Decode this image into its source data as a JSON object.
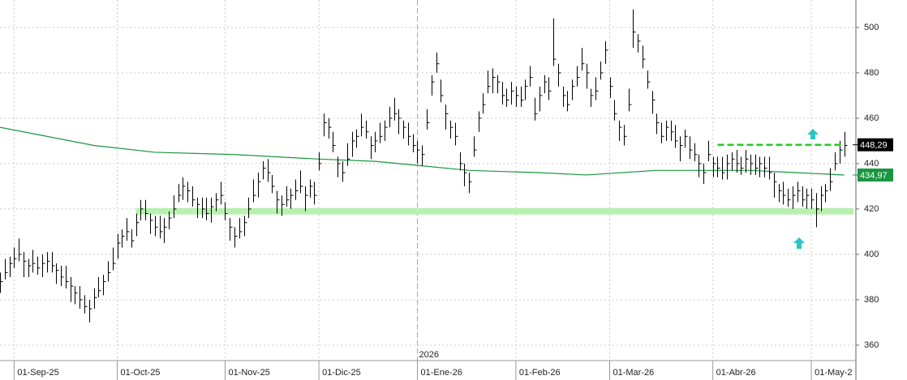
{
  "chart_data": {
    "type": "ohlc",
    "bars": {
      "color": "#000000",
      "close": [
        388,
        392,
        396,
        398,
        400,
        397,
        395,
        396,
        394,
        396,
        397,
        395,
        393,
        390,
        388,
        386,
        383,
        380,
        377,
        376,
        381,
        384,
        388,
        392,
        396,
        405,
        408,
        410,
        406,
        414,
        420,
        418,
        415,
        412,
        410,
        412,
        416,
        420,
        426,
        430,
        428,
        424,
        422,
        420,
        418,
        421,
        424,
        426,
        418,
        412,
        408,
        410,
        414,
        420,
        426,
        432,
        438,
        436,
        430,
        424,
        422,
        424,
        426,
        428,
        430,
        426,
        430,
        426,
        440,
        458,
        456,
        448,
        440,
        436,
        442,
        450,
        452,
        456,
        454,
        448,
        450,
        452,
        456,
        460,
        462,
        460,
        456,
        452,
        448,
        446,
        444,
        458,
        476,
        484,
        470,
        462,
        456,
        452,
        440,
        436,
        432,
        446,
        460,
        466,
        474,
        478,
        476,
        470,
        468,
        472,
        470,
        468,
        474,
        478,
        462,
        470,
        476,
        472,
        486,
        480,
        470,
        466,
        474,
        478,
        484,
        480,
        470,
        472,
        480,
        490,
        474,
        462,
        456,
        452,
        466,
        498,
        494,
        486,
        476,
        468,
        458,
        452,
        456,
        454,
        450,
        448,
        452,
        446,
        444,
        440,
        436,
        444,
        440,
        438,
        436,
        440,
        442,
        440,
        438,
        442,
        440,
        438,
        440,
        438,
        436,
        432,
        428,
        426,
        424,
        426,
        428,
        424,
        426,
        424,
        420,
        426,
        428,
        432,
        440,
        446,
        448
      ],
      "high": [
        392,
        398,
        399,
        403,
        407,
        401,
        398,
        402,
        399,
        400,
        401,
        401,
        396,
        395,
        395,
        390,
        386,
        386,
        382,
        380,
        385,
        390,
        391,
        397,
        403,
        409,
        411,
        416,
        411,
        418,
        424,
        424,
        418,
        417,
        417,
        416,
        419,
        426,
        431,
        434,
        432,
        430,
        425,
        425,
        425,
        425,
        427,
        432,
        423,
        416,
        412,
        416,
        417,
        425,
        433,
        436,
        441,
        442,
        435,
        428,
        426,
        430,
        429,
        433,
        437,
        430,
        433,
        432,
        445,
        462,
        460,
        454,
        443,
        441,
        449,
        454,
        455,
        462,
        459,
        452,
        454,
        458,
        459,
        465,
        469,
        464,
        459,
        458,
        453,
        450,
        448,
        464,
        479,
        489,
        477,
        466,
        459,
        458,
        445,
        440,
        436,
        452,
        463,
        471,
        481,
        482,
        479,
        476,
        473,
        476,
        474,
        474,
        477,
        483,
        469,
        474,
        479,
        478,
        504,
        484,
        474,
        472,
        477,
        483,
        491,
        484,
        473,
        478,
        485,
        494,
        478,
        468,
        459,
        457,
        473,
        508,
        497,
        492,
        481,
        472,
        462,
        458,
        459,
        459,
        457,
        452,
        455,
        452,
        449,
        444,
        440,
        450,
        443,
        443,
        443,
        444,
        445,
        446,
        443,
        446,
        444,
        444,
        443,
        443,
        443,
        436,
        431,
        432,
        429,
        430,
        432,
        430,
        429,
        429,
        427,
        430,
        431,
        438,
        445,
        450,
        454
      ],
      "low": [
        383,
        389,
        390,
        394,
        397,
        390,
        390,
        392,
        391,
        390,
        392,
        392,
        387,
        386,
        385,
        379,
        378,
        376,
        374,
        370,
        376,
        381,
        382,
        388,
        393,
        398,
        403,
        406,
        403,
        408,
        415,
        415,
        409,
        408,
        407,
        405,
        411,
        416,
        423,
        424,
        423,
        421,
        416,
        416,
        415,
        414,
        419,
        422,
        415,
        406,
        403,
        407,
        408,
        416,
        423,
        425,
        433,
        432,
        427,
        418,
        417,
        421,
        420,
        424,
        427,
        419,
        425,
        422,
        437,
        452,
        451,
        445,
        434,
        432,
        439,
        443,
        447,
        452,
        451,
        442,
        445,
        449,
        450,
        456,
        459,
        453,
        451,
        448,
        445,
        440,
        439,
        455,
        470,
        480,
        467,
        455,
        451,
        448,
        437,
        430,
        427,
        443,
        454,
        462,
        471,
        471,
        471,
        466,
        465,
        466,
        465,
        465,
        468,
        474,
        459,
        463,
        471,
        468,
        483,
        474,
        465,
        463,
        468,
        474,
        481,
        473,
        465,
        468,
        477,
        484,
        469,
        459,
        450,
        448,
        463,
        491,
        489,
        482,
        473,
        462,
        453,
        449,
        450,
        450,
        447,
        441,
        447,
        442,
        441,
        434,
        431,
        441,
        434,
        434,
        433,
        433,
        437,
        436,
        435,
        436,
        435,
        435,
        434,
        434,
        433,
        425,
        423,
        422,
        421,
        420,
        423,
        421,
        420,
        420,
        412,
        419,
        423,
        428,
        437,
        440,
        443
      ]
    },
    "moving_average": {
      "color": "#1a9641",
      "x": [
        0,
        20,
        33,
        50,
        68,
        80,
        100,
        115,
        125,
        140,
        150,
        160,
        170,
        180
      ],
      "values": [
        456,
        448,
        445,
        444,
        442,
        441,
        437,
        436,
        435,
        437,
        437,
        437,
        436,
        434.97
      ],
      "value_label": "434,97"
    },
    "support": {
      "color": "#b8f0b0",
      "value": 419,
      "x": [
        29,
        182
      ]
    },
    "resistance": {
      "color": "#22cc22",
      "value": 448.29,
      "label": "448,29",
      "x": [
        153,
        180
      ]
    },
    "year_marker": {
      "x": 89,
      "label": "2026"
    },
    "xlim": [
      0,
      182.5
    ],
    "ylim": [
      353.2,
      512.1
    ],
    "yticks": [
      360,
      380,
      400,
      420,
      440,
      460,
      480,
      500
    ],
    "xticks": [
      {
        "value": 3,
        "label": "01-Sep-25"
      },
      {
        "value": 25,
        "label": "01-Oct-25"
      },
      {
        "value": 48,
        "label": "01-Nov-25"
      },
      {
        "value": 68,
        "label": "01-Dic-25"
      },
      {
        "value": 89,
        "label": "01-Ene-26"
      },
      {
        "value": 110,
        "label": "01-Feb-26"
      },
      {
        "value": 130,
        "label": "01-Mar-26"
      },
      {
        "value": 152,
        "label": "01-Abr-26"
      },
      {
        "value": 173,
        "label": "01-May-2"
      }
    ],
    "grid": true
  }
}
